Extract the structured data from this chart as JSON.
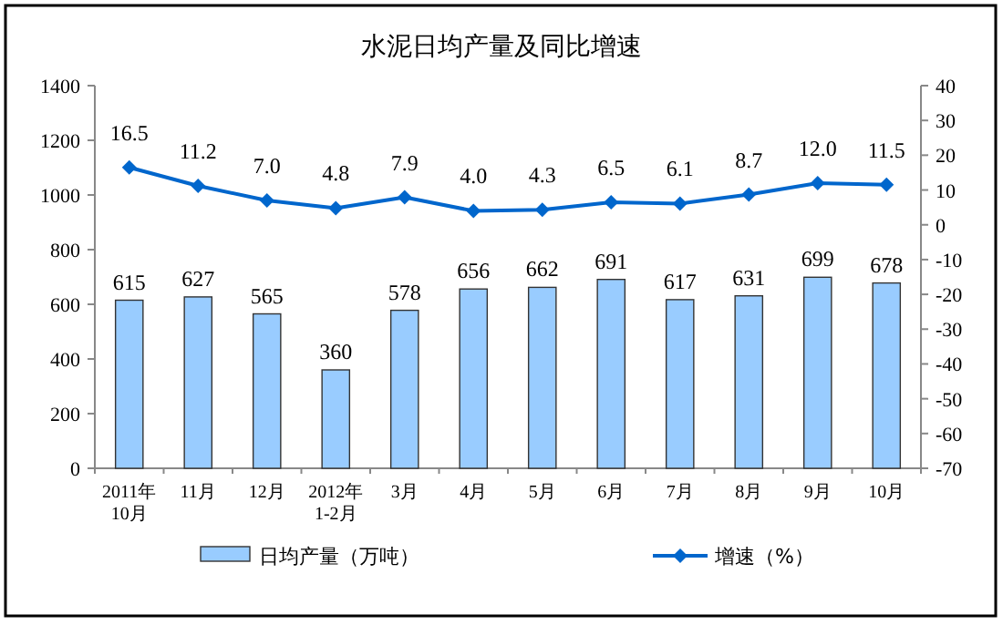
{
  "chart_data": {
    "type": "bar",
    "title": "水泥日均产量及同比增速",
    "categories": [
      "2011年\n10月",
      "11月",
      "12月",
      "2012年\n1-2月",
      "3月",
      "4月",
      "5月",
      "6月",
      "7月",
      "8月",
      "9月",
      "10月"
    ],
    "series": [
      {
        "name": "日均产量（万吨）",
        "color": "#99ccff",
        "values": [
          615,
          627,
          565,
          360,
          578,
          656,
          662,
          691,
          617,
          631,
          699,
          678
        ]
      },
      {
        "name": "增速（%）",
        "type": "line",
        "axis": "y2",
        "color": "#0066cc",
        "marker": "diamond",
        "values": [
          16.5,
          11.2,
          7.0,
          4.8,
          7.9,
          4.0,
          4.3,
          6.5,
          6.1,
          8.7,
          12.0,
          11.5
        ],
        "value_labels": [
          "16.5",
          "11.2",
          "7.0",
          "4.8",
          "7.9",
          "4.0",
          "4.3",
          "6.5",
          "6.1",
          "8.7",
          "12.0",
          "11.5"
        ]
      }
    ],
    "ylim": [
      0,
      1400
    ],
    "yticks": [
      0,
      200,
      400,
      600,
      800,
      1000,
      1200,
      1400
    ],
    "y2lim": [
      -70,
      40
    ],
    "y2ticks": [
      -70,
      -60,
      -50,
      -40,
      -30,
      -20,
      -10,
      0,
      10,
      20,
      30,
      40
    ],
    "data_labels": true,
    "legend": "bottom",
    "grid": false
  }
}
